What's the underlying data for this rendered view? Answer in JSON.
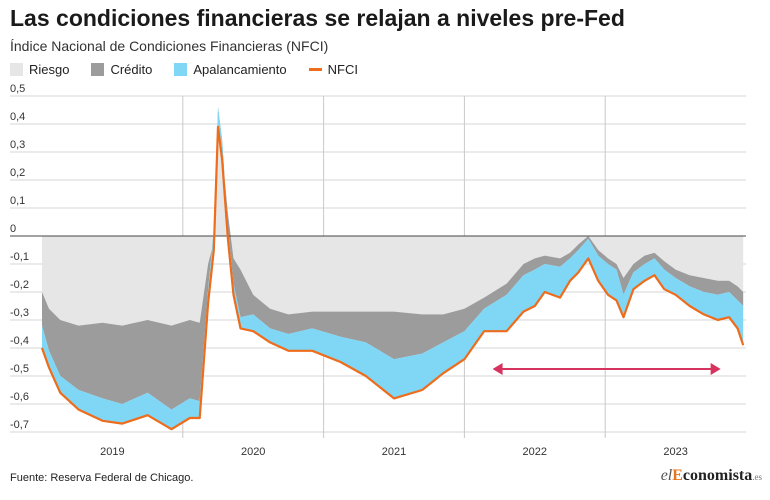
{
  "header": {
    "title": "Las condiciones financieras se relajan a niveles pre-Fed",
    "subtitle": "Índice Nacional de Condiciones Financieras (NFCI)"
  },
  "legend": [
    {
      "label": "Riesgo",
      "color": "#e6e6e6",
      "kind": "area"
    },
    {
      "label": "Crédito",
      "color": "#9c9c9c",
      "kind": "area"
    },
    {
      "label": "Apalancamiento",
      "color": "#7fd6f5",
      "kind": "area"
    },
    {
      "label": "NFCI",
      "color": "#ee6c1a",
      "kind": "line"
    }
  ],
  "footer": {
    "source": "Fuente: Reserva Federal de Chicago.",
    "logo_el": "el",
    "logo_e": "E",
    "logo_rest": "conomista",
    "logo_tld": ".es"
  },
  "chart_data": {
    "type": "area",
    "x_unit": "year",
    "xlim": [
      2018.5,
      2023.5
    ],
    "ylim": [
      -0.7,
      0.5
    ],
    "yticks": [
      0.5,
      0.4,
      0.3,
      0.2,
      0.1,
      0,
      -0.1,
      -0.2,
      -0.3,
      -0.4,
      -0.5,
      -0.6,
      -0.7
    ],
    "ytick_labels": [
      "0,5",
      "0,4",
      "0,3",
      "0,2",
      "0,1",
      "0",
      "-0,1",
      "-0,2",
      "-0,3",
      "-0,4",
      "-0,5",
      "-0,6",
      "-0,7"
    ],
    "year_dividers": [
      2019.5,
      2020.5,
      2021.5,
      2022.5
    ],
    "xtick_labels": [
      {
        "x": 2019,
        "label": "2019"
      },
      {
        "x": 2020,
        "label": "2020"
      },
      {
        "x": 2021,
        "label": "2021"
      },
      {
        "x": 2022,
        "label": "2022"
      },
      {
        "x": 2023,
        "label": "2023"
      }
    ],
    "grid": true,
    "legend_position": "top-left",
    "x": [
      2018.5,
      2018.55,
      2018.63,
      2018.76,
      2018.93,
      2019.07,
      2019.25,
      2019.42,
      2019.55,
      2019.62,
      2019.68,
      2019.72,
      2019.75,
      2019.78,
      2019.82,
      2019.86,
      2019.91,
      2020.0,
      2020.12,
      2020.25,
      2020.42,
      2020.62,
      2020.8,
      2021.0,
      2021.2,
      2021.35,
      2021.5,
      2021.64,
      2021.8,
      2021.92,
      2022.0,
      2022.07,
      2022.18,
      2022.25,
      2022.31,
      2022.38,
      2022.45,
      2022.52,
      2022.58,
      2022.63,
      2022.7,
      2022.78,
      2022.85,
      2022.92,
      2023.0,
      2023.1,
      2023.2,
      2023.3,
      2023.38,
      2023.44,
      2023.48
    ],
    "series": [
      {
        "name": "Riesgo",
        "color": "#e6e6e6",
        "values": [
          -0.2,
          -0.26,
          -0.3,
          -0.32,
          -0.31,
          -0.32,
          -0.3,
          -0.32,
          -0.3,
          -0.31,
          -0.1,
          -0.02,
          0.4,
          0.3,
          0.08,
          -0.08,
          -0.12,
          -0.21,
          -0.26,
          -0.28,
          -0.27,
          -0.27,
          -0.27,
          -0.27,
          -0.28,
          -0.28,
          -0.26,
          -0.22,
          -0.17,
          -0.1,
          -0.08,
          -0.07,
          -0.08,
          -0.06,
          -0.03,
          0.0,
          -0.05,
          -0.08,
          -0.1,
          -0.15,
          -0.1,
          -0.07,
          -0.06,
          -0.09,
          -0.12,
          -0.14,
          -0.15,
          -0.16,
          -0.16,
          -0.18,
          -0.2
        ]
      },
      {
        "name": "Crédito",
        "color": "#9c9c9c",
        "values": [
          -0.12,
          -0.15,
          -0.2,
          -0.23,
          -0.27,
          -0.28,
          -0.26,
          -0.3,
          -0.28,
          -0.28,
          -0.09,
          0.04,
          0.06,
          0.04,
          -0.05,
          -0.09,
          -0.17,
          -0.07,
          -0.07,
          -0.07,
          -0.06,
          -0.09,
          -0.11,
          -0.17,
          -0.14,
          -0.1,
          -0.08,
          -0.04,
          -0.04,
          -0.04,
          -0.04,
          -0.03,
          -0.03,
          -0.02,
          -0.02,
          -0.01,
          -0.02,
          -0.02,
          -0.02,
          -0.06,
          -0.03,
          -0.03,
          -0.02,
          -0.03,
          -0.03,
          -0.04,
          -0.05,
          -0.05,
          -0.04,
          -0.05,
          -0.05
        ]
      },
      {
        "name": "Apalancamiento",
        "color": "#7fd6f5",
        "values": [
          -0.08,
          -0.06,
          -0.06,
          -0.07,
          -0.08,
          -0.07,
          -0.08,
          -0.07,
          -0.07,
          -0.06,
          -0.05,
          -0.07,
          -0.07,
          -0.07,
          -0.04,
          -0.04,
          -0.04,
          -0.06,
          -0.05,
          -0.06,
          -0.08,
          -0.09,
          -0.12,
          -0.14,
          -0.13,
          -0.11,
          -0.1,
          -0.08,
          -0.13,
          -0.13,
          -0.13,
          -0.1,
          -0.11,
          -0.08,
          -0.08,
          -0.07,
          -0.09,
          -0.11,
          -0.11,
          -0.08,
          -0.06,
          -0.06,
          -0.06,
          -0.07,
          -0.06,
          -0.07,
          -0.08,
          -0.09,
          -0.09,
          -0.1,
          -0.14
        ]
      }
    ],
    "line": {
      "name": "NFCI",
      "color": "#ee6c1a",
      "values": [
        -0.4,
        -0.47,
        -0.56,
        -0.62,
        -0.66,
        -0.67,
        -0.64,
        -0.69,
        -0.65,
        -0.65,
        -0.24,
        -0.05,
        0.39,
        0.27,
        -0.01,
        -0.21,
        -0.33,
        -0.34,
        -0.38,
        -0.41,
        -0.41,
        -0.45,
        -0.5,
        -0.58,
        -0.55,
        -0.49,
        -0.44,
        -0.34,
        -0.34,
        -0.27,
        -0.25,
        -0.2,
        -0.22,
        -0.16,
        -0.13,
        -0.08,
        -0.16,
        -0.21,
        -0.23,
        -0.29,
        -0.19,
        -0.16,
        -0.14,
        -0.19,
        -0.21,
        -0.25,
        -0.28,
        -0.3,
        -0.29,
        -0.33,
        -0.39
      ]
    },
    "annotation": {
      "type": "double-arrow",
      "x_start": 2021.7,
      "x_end": 2023.32,
      "y": -0.475,
      "color": "#d6335e"
    }
  }
}
